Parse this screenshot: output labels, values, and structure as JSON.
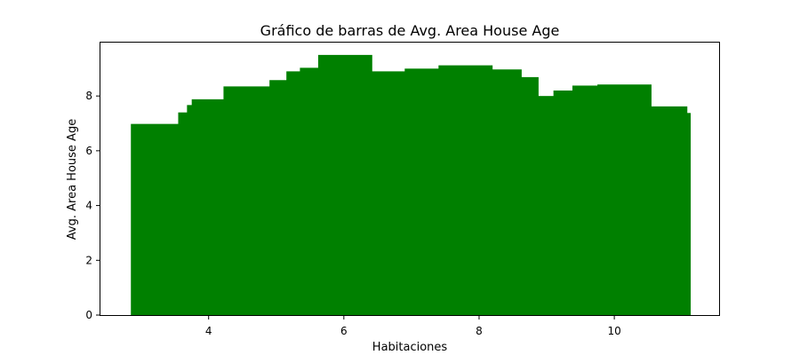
{
  "chart_data": {
    "type": "bar",
    "title": "Gráfico de barras de Avg. Area House Age",
    "xlabel": "Habitaciones",
    "ylabel": "Avg. Area House Age",
    "xlim": [
      2.4,
      11.55
    ],
    "ylim": [
      0,
      9.95
    ],
    "x_ticks": [
      4,
      6,
      8,
      10
    ],
    "y_ticks": [
      0,
      2,
      4,
      6,
      8
    ],
    "bar_width": 0.8,
    "color": "#008000",
    "grid": false,
    "legend": "none",
    "bars": [
      {
        "x": 3.25,
        "value": 6.98
      },
      {
        "x": 3.95,
        "value": 7.4
      },
      {
        "x": 4.08,
        "value": 7.67
      },
      {
        "x": 4.15,
        "value": 7.88
      },
      {
        "x": 4.62,
        "value": 8.35
      },
      {
        "x": 5.3,
        "value": 8.58
      },
      {
        "x": 5.55,
        "value": 8.9
      },
      {
        "x": 5.75,
        "value": 9.03
      },
      {
        "x": 6.02,
        "value": 9.5
      },
      {
        "x": 6.68,
        "value": 8.9
      },
      {
        "x": 6.74,
        "value": 8.73
      },
      {
        "x": 6.78,
        "value": 8.56
      },
      {
        "x": 7.3,
        "value": 9.0
      },
      {
        "x": 7.8,
        "value": 9.12
      },
      {
        "x": 8.23,
        "value": 8.97
      },
      {
        "x": 8.48,
        "value": 8.69
      },
      {
        "x": 8.88,
        "value": 8.0
      },
      {
        "x": 8.95,
        "value": 7.95
      },
      {
        "x": 9.2,
        "value": 7.8
      },
      {
        "x": 9.5,
        "value": 8.2
      },
      {
        "x": 9.78,
        "value": 8.38
      },
      {
        "x": 10.15,
        "value": 8.42
      },
      {
        "x": 10.68,
        "value": 7.62
      },
      {
        "x": 10.73,
        "value": 7.38
      }
    ]
  }
}
